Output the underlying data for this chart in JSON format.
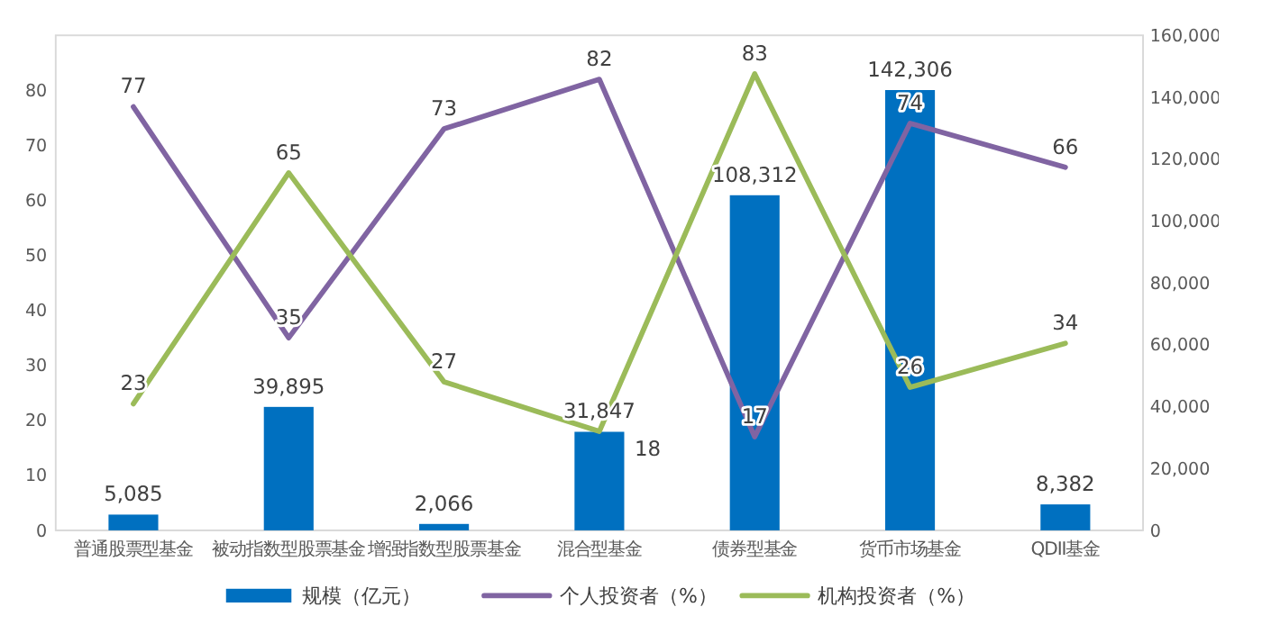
{
  "chart_data": {
    "type": "bar",
    "categories": [
      "普通股票型基金",
      "被动指数型股票基金",
      "增强指数型股票基金",
      "混合型基金",
      "债券型基金",
      "货币市场基金",
      "QDII基金"
    ],
    "series": [
      {
        "name": "规模（亿元）",
        "axis": "y2",
        "color": "#0070c0",
        "values": [
          5085,
          39895,
          2066,
          31847,
          108312,
          142306,
          8382
        ],
        "value_labels": [
          "5,085",
          "39,895",
          "2,066",
          "31,847",
          "108,312",
          "142,306",
          "8,382"
        ]
      },
      {
        "name": "个人投资者（%）",
        "type": "line",
        "color": "#8064a2",
        "values": [
          77,
          35,
          73,
          82,
          17,
          74,
          66
        ],
        "value_labels": [
          "77",
          "35",
          "73",
          "82",
          "17",
          "74",
          "66"
        ]
      },
      {
        "name": "机构投资者（%）",
        "type": "line",
        "color": "#9bbb59",
        "values": [
          23,
          65,
          27,
          18,
          83,
          26,
          34
        ],
        "value_labels": [
          "23",
          "65",
          "27",
          "18",
          "83",
          "26",
          "34"
        ]
      }
    ],
    "ylim": [
      0,
      90
    ],
    "yticks": [
      0,
      10,
      20,
      30,
      40,
      50,
      60,
      70,
      80
    ],
    "y2lim": [
      0,
      160000
    ],
    "y2ticks": [
      0,
      {
        "value": 20000,
        "label": "20,000"
      },
      {
        "value": 40000,
        "label": "40,000"
      },
      {
        "value": 60000,
        "label": "60,000"
      },
      {
        "value": 80000,
        "label": "80,000"
      },
      {
        "value": 100000,
        "label": "100,000"
      },
      {
        "value": 120000,
        "label": "120,000"
      },
      {
        "value": 140000,
        "label": "140,000"
      },
      {
        "value": 160000,
        "label": "160,000"
      }
    ],
    "legend": "bottom"
  }
}
